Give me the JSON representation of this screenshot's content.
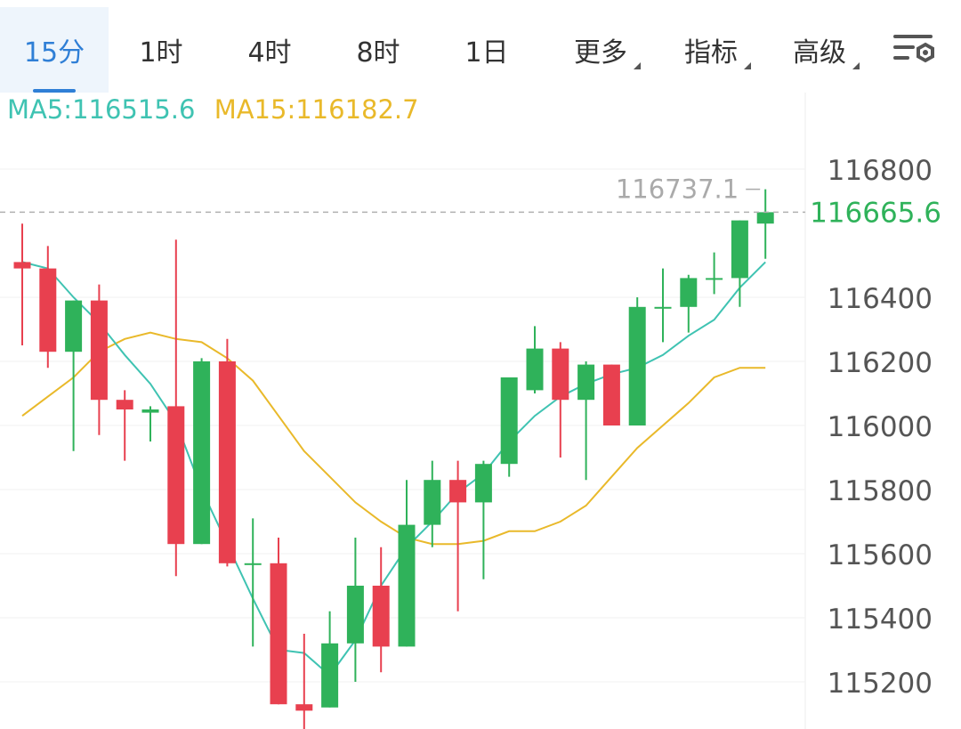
{
  "toolbar": {
    "tabs": [
      {
        "label": "15分",
        "active": true
      },
      {
        "label": "1时",
        "active": false
      },
      {
        "label": "4时",
        "active": false
      },
      {
        "label": "8时",
        "active": false
      },
      {
        "label": "1日",
        "active": false
      },
      {
        "label": "更多",
        "active": false,
        "dropdown": true
      },
      {
        "label": "指标",
        "active": false,
        "dropdown": true
      },
      {
        "label": "高级",
        "active": false,
        "dropdown": true
      }
    ],
    "settings_icon": "chart-settings-icon"
  },
  "legend": {
    "ma5": "MA5:116515.6",
    "ma15": "MA15:116182.7"
  },
  "colors": {
    "up": "#2fb25a",
    "down": "#e8404f",
    "ma5": "#3fc3b2",
    "ma15": "#e9b92a",
    "accent": "#2f7fd6"
  },
  "chart_data": {
    "type": "candlestick",
    "y_ticks": [
      "116800",
      "116400",
      "116200",
      "116000",
      "115800",
      "115600",
      "115400",
      "115200"
    ],
    "ylim": [
      115100,
      116980
    ],
    "current_price": "116665.6",
    "high_label": "116737.1",
    "candles": [
      {
        "o": 116510,
        "h": 116630,
        "l": 116250,
        "c": 116490
      },
      {
        "o": 116490,
        "h": 116560,
        "l": 116180,
        "c": 116230
      },
      {
        "o": 116230,
        "h": 116390,
        "l": 115920,
        "c": 116390
      },
      {
        "o": 116390,
        "h": 116440,
        "l": 115970,
        "c": 116080
      },
      {
        "o": 116080,
        "h": 116110,
        "l": 115890,
        "c": 116050
      },
      {
        "o": 116040,
        "h": 116060,
        "l": 115950,
        "c": 116050
      },
      {
        "o": 116060,
        "h": 116580,
        "l": 115530,
        "c": 115630
      },
      {
        "o": 115630,
        "h": 116210,
        "l": 115630,
        "c": 116200
      },
      {
        "o": 116200,
        "h": 116270,
        "l": 115560,
        "c": 115570
      },
      {
        "o": 115570,
        "h": 115710,
        "l": 115310,
        "c": 115570
      },
      {
        "o": 115570,
        "h": 115650,
        "l": 115130,
        "c": 115130
      },
      {
        "o": 115130,
        "h": 115350,
        "l": 115000,
        "c": 115110
      },
      {
        "o": 115120,
        "h": 115420,
        "l": 115120,
        "c": 115320
      },
      {
        "o": 115320,
        "h": 115650,
        "l": 115200,
        "c": 115500
      },
      {
        "o": 115500,
        "h": 115620,
        "l": 115230,
        "c": 115310
      },
      {
        "o": 115310,
        "h": 115830,
        "l": 115310,
        "c": 115690
      },
      {
        "o": 115690,
        "h": 115890,
        "l": 115620,
        "c": 115830
      },
      {
        "o": 115830,
        "h": 115890,
        "l": 115420,
        "c": 115760
      },
      {
        "o": 115760,
        "h": 115890,
        "l": 115520,
        "c": 115880
      },
      {
        "o": 115880,
        "h": 116150,
        "l": 115840,
        "c": 116150
      },
      {
        "o": 116110,
        "h": 116310,
        "l": 116100,
        "c": 116240
      },
      {
        "o": 116240,
        "h": 116260,
        "l": 115900,
        "c": 116080
      },
      {
        "o": 116080,
        "h": 116200,
        "l": 115830,
        "c": 116190
      },
      {
        "o": 116190,
        "h": 116190,
        "l": 116000,
        "c": 116000
      },
      {
        "o": 116000,
        "h": 116400,
        "l": 116000,
        "c": 116370
      },
      {
        "o": 116370,
        "h": 116490,
        "l": 116260,
        "c": 116370
      },
      {
        "o": 116370,
        "h": 116470,
        "l": 116290,
        "c": 116460
      },
      {
        "o": 116460,
        "h": 116540,
        "l": 116410,
        "c": 116460
      },
      {
        "o": 116460,
        "h": 116640,
        "l": 116370,
        "c": 116640
      },
      {
        "o": 116630,
        "h": 116737.1,
        "l": 116520,
        "c": 116665.6
      }
    ],
    "ma5": [
      116510,
      116490,
      116400,
      116320,
      116220,
      116130,
      116010,
      115800,
      115630,
      115460,
      115300,
      115290,
      115220,
      115330,
      115500,
      115620,
      115700,
      115790,
      115850,
      115950,
      116030,
      116090,
      116130,
      116160,
      116180,
      116220,
      116280,
      116330,
      116430,
      116510
    ],
    "ma15": [
      116030,
      116090,
      116150,
      116230,
      116270,
      116290,
      116270,
      116260,
      116210,
      116140,
      116030,
      115920,
      115840,
      115760,
      115700,
      115650,
      115630,
      115630,
      115640,
      115670,
      115670,
      115700,
      115750,
      115840,
      115930,
      116000,
      116070,
      116150,
      116180,
      116180
    ]
  }
}
